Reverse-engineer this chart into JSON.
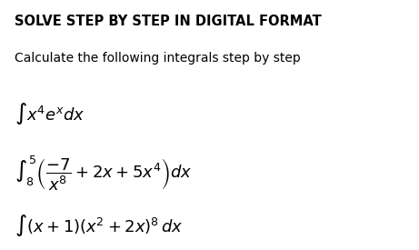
{
  "title": "SOLVE STEP BY STEP IN DIGITAL FORMAT",
  "subtitle": "Calculate the following integrals step by step",
  "integral1": "$\\int x^4e^x dx$",
  "integral2": "$\\int_8^5 \\left(\\dfrac{-7}{x^8} + 2x + 5x^4\\right) dx$",
  "integral3": "$\\int (x + 1)(x^2 + 2x)^8 \\, dx$",
  "bg_color": "#ffffff",
  "text_color": "#000000",
  "title_fontsize": 10.5,
  "subtitle_fontsize": 10,
  "integral_fontsize": 13
}
